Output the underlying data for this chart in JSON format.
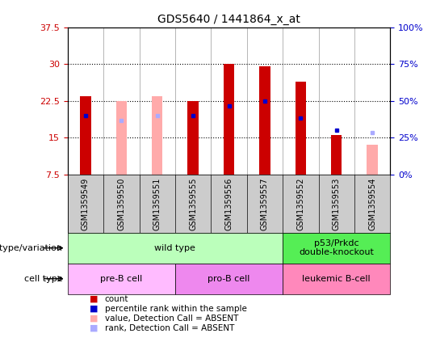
{
  "title": "GDS5640 / 1441864_x_at",
  "samples": [
    "GSM1359549",
    "GSM1359550",
    "GSM1359551",
    "GSM1359555",
    "GSM1359556",
    "GSM1359557",
    "GSM1359552",
    "GSM1359553",
    "GSM1359554"
  ],
  "red_bar_values": [
    23.5,
    0,
    0,
    22.5,
    30.0,
    29.5,
    26.5,
    15.5,
    0
  ],
  "pink_bar_values": [
    0,
    22.5,
    23.5,
    0,
    0,
    0,
    0,
    0,
    13.5
  ],
  "blue_dot_values": [
    19.5,
    0,
    0,
    19.5,
    21.5,
    22.5,
    19.0,
    16.5,
    0
  ],
  "light_blue_dot_values": [
    0,
    18.5,
    19.5,
    0,
    0,
    0,
    0,
    0,
    16.0
  ],
  "y_min": 7.5,
  "y_max": 37.5,
  "y_ticks": [
    7.5,
    15.0,
    22.5,
    30.0,
    37.5
  ],
  "y_right_ticks_pos": [
    7.5,
    15.0,
    22.5,
    30.0,
    37.5
  ],
  "y_right_labels": [
    "0%",
    "25%",
    "50%",
    "75%",
    "100%"
  ],
  "dotted_lines": [
    15.0,
    22.5,
    30.0
  ],
  "genotype_groups": [
    {
      "label": "wild type",
      "start": 0,
      "end": 6,
      "color": "#bbffbb"
    },
    {
      "label": "p53/Prkdc\ndouble-knockout",
      "start": 6,
      "end": 9,
      "color": "#55ee55"
    }
  ],
  "cell_type_groups": [
    {
      "label": "pre-B cell",
      "start": 0,
      "end": 3,
      "color": "#ffbbff"
    },
    {
      "label": "pro-B cell",
      "start": 3,
      "end": 6,
      "color": "#ee88ee"
    },
    {
      "label": "leukemic B-cell",
      "start": 6,
      "end": 9,
      "color": "#ff88bb"
    }
  ],
  "legend_items": [
    {
      "color": "#cc0000",
      "label": "count",
      "marker": "s"
    },
    {
      "color": "#0000cc",
      "label": "percentile rank within the sample",
      "marker": "s"
    },
    {
      "color": "#ffaaaa",
      "label": "value, Detection Call = ABSENT",
      "marker": "s"
    },
    {
      "color": "#aaaaff",
      "label": "rank, Detection Call = ABSENT",
      "marker": "s"
    }
  ],
  "bar_width": 0.3,
  "y_label_color": "#cc0000",
  "y_right_label_color": "#0000cc",
  "bg_color": "#ffffff",
  "sample_bg_color": "#cccccc",
  "tick_fontsize": 7,
  "title_fontsize": 10
}
